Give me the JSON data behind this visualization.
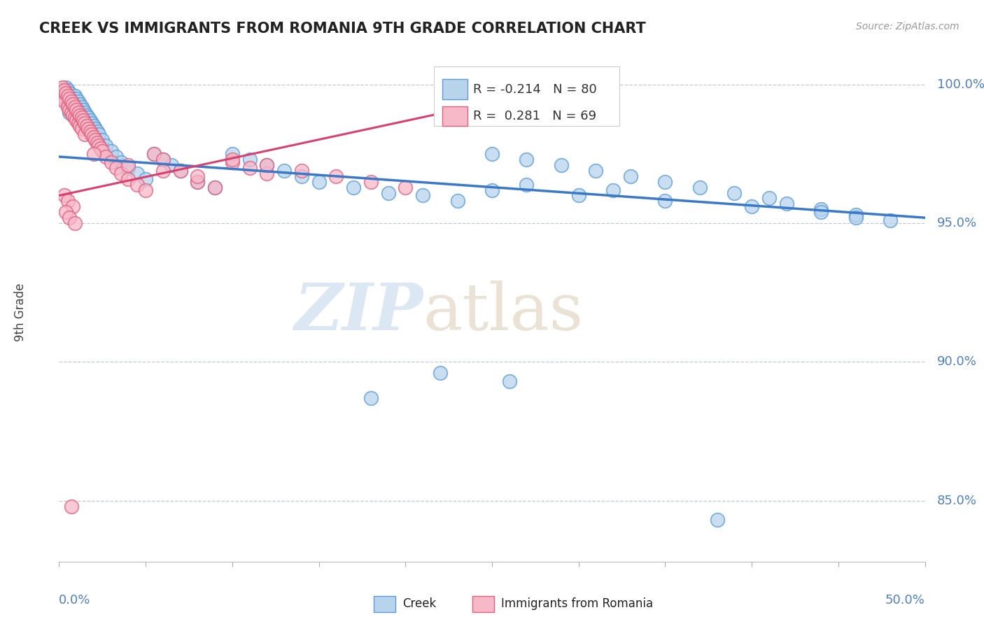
{
  "title": "CREEK VS IMMIGRANTS FROM ROMANIA 9TH GRADE CORRELATION CHART",
  "source": "Source: ZipAtlas.com",
  "ylabel": "9th Grade",
  "legend_labels": [
    "Creek",
    "Immigrants from Romania"
  ],
  "r_creek": -0.214,
  "n_creek": 80,
  "r_romania": 0.281,
  "n_romania": 69,
  "creek_color": "#b8d4ed",
  "creek_edge_color": "#5b9bd5",
  "romania_color": "#f7b8c8",
  "romania_edge_color": "#e06080",
  "creek_line_color": "#3a78c9",
  "romania_line_color": "#d94070",
  "right_ytick_vals": [
    0.85,
    0.9,
    0.95,
    1.0
  ],
  "right_ytick_labels": [
    "85.0%",
    "90.0%",
    "95.0%",
    "100.0%"
  ],
  "xlim": [
    0.0,
    0.5
  ],
  "ylim": [
    0.828,
    1.008
  ],
  "creek_trend_x": [
    0.0,
    0.5
  ],
  "creek_trend_y": [
    0.974,
    0.952
  ],
  "romania_trend_x": [
    0.0,
    0.305
  ],
  "romania_trend_y": [
    0.96,
    1.001
  ],
  "watermark_zip_color": "#c5d8ee",
  "watermark_atlas_color": "#ddd0b8",
  "creek_scatter_x": [
    0.001,
    0.002,
    0.003,
    0.003,
    0.004,
    0.004,
    0.005,
    0.005,
    0.006,
    0.006,
    0.007,
    0.008,
    0.009,
    0.009,
    0.01,
    0.01,
    0.011,
    0.011,
    0.012,
    0.013,
    0.013,
    0.014,
    0.015,
    0.016,
    0.017,
    0.018,
    0.019,
    0.02,
    0.021,
    0.022,
    0.023,
    0.025,
    0.027,
    0.03,
    0.033,
    0.036,
    0.04,
    0.045,
    0.05,
    0.055,
    0.06,
    0.065,
    0.07,
    0.08,
    0.09,
    0.1,
    0.11,
    0.12,
    0.13,
    0.14,
    0.15,
    0.17,
    0.19,
    0.21,
    0.23,
    0.25,
    0.27,
    0.29,
    0.31,
    0.33,
    0.35,
    0.37,
    0.39,
    0.41,
    0.42,
    0.44,
    0.46,
    0.48,
    0.25,
    0.3,
    0.35,
    0.4,
    0.44,
    0.46,
    0.27,
    0.32,
    0.22,
    0.18,
    0.26,
    0.38
  ],
  "creek_scatter_y": [
    0.998,
    0.997,
    0.998,
    0.996,
    0.999,
    0.994,
    0.998,
    0.993,
    0.997,
    0.99,
    0.995,
    0.994,
    0.996,
    0.991,
    0.995,
    0.99,
    0.994,
    0.989,
    0.993,
    0.992,
    0.988,
    0.991,
    0.99,
    0.989,
    0.988,
    0.987,
    0.986,
    0.985,
    0.984,
    0.983,
    0.982,
    0.98,
    0.978,
    0.976,
    0.974,
    0.972,
    0.97,
    0.968,
    0.966,
    0.975,
    0.973,
    0.971,
    0.969,
    0.965,
    0.963,
    0.975,
    0.973,
    0.971,
    0.969,
    0.967,
    0.965,
    0.963,
    0.961,
    0.96,
    0.958,
    0.975,
    0.973,
    0.971,
    0.969,
    0.967,
    0.965,
    0.963,
    0.961,
    0.959,
    0.957,
    0.955,
    0.953,
    0.951,
    0.962,
    0.96,
    0.958,
    0.956,
    0.954,
    0.952,
    0.964,
    0.962,
    0.896,
    0.887,
    0.893,
    0.843
  ],
  "romania_scatter_x": [
    0.001,
    0.002,
    0.002,
    0.003,
    0.003,
    0.004,
    0.005,
    0.005,
    0.006,
    0.006,
    0.007,
    0.007,
    0.008,
    0.008,
    0.009,
    0.009,
    0.01,
    0.01,
    0.011,
    0.011,
    0.012,
    0.012,
    0.013,
    0.013,
    0.014,
    0.015,
    0.015,
    0.016,
    0.017,
    0.018,
    0.019,
    0.02,
    0.021,
    0.022,
    0.023,
    0.024,
    0.025,
    0.027,
    0.03,
    0.033,
    0.036,
    0.04,
    0.045,
    0.05,
    0.055,
    0.06,
    0.07,
    0.08,
    0.09,
    0.1,
    0.11,
    0.12,
    0.02,
    0.04,
    0.06,
    0.08,
    0.1,
    0.12,
    0.14,
    0.16,
    0.18,
    0.2,
    0.003,
    0.005,
    0.008,
    0.004,
    0.006,
    0.009,
    0.007
  ],
  "romania_scatter_y": [
    0.998,
    0.999,
    0.996,
    0.998,
    0.994,
    0.997,
    0.996,
    0.992,
    0.995,
    0.991,
    0.994,
    0.99,
    0.993,
    0.989,
    0.992,
    0.988,
    0.991,
    0.987,
    0.99,
    0.986,
    0.989,
    0.985,
    0.988,
    0.984,
    0.987,
    0.986,
    0.982,
    0.985,
    0.984,
    0.983,
    0.982,
    0.981,
    0.98,
    0.979,
    0.978,
    0.977,
    0.976,
    0.974,
    0.972,
    0.97,
    0.968,
    0.966,
    0.964,
    0.962,
    0.975,
    0.973,
    0.969,
    0.965,
    0.963,
    0.972,
    0.97,
    0.968,
    0.975,
    0.971,
    0.969,
    0.967,
    0.973,
    0.971,
    0.969,
    0.967,
    0.965,
    0.963,
    0.96,
    0.958,
    0.956,
    0.954,
    0.952,
    0.95,
    0.848
  ]
}
